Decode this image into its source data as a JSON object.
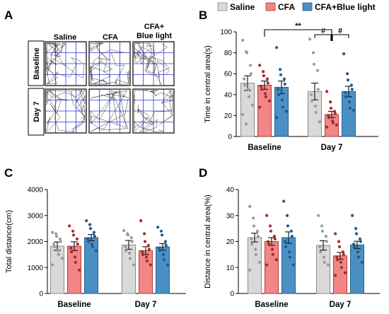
{
  "panel_labels": {
    "a": "A",
    "b": "B",
    "c": "C",
    "d": "D"
  },
  "panel_a": {
    "columns": [
      "Saline",
      "CFA",
      "CFA+\nBlue light"
    ],
    "rows": [
      "Baseline",
      "Day 7"
    ]
  },
  "legend": [
    {
      "name": "Saline",
      "color": "#d9d9d9"
    },
    {
      "name": "CFA",
      "color": "#f28585"
    },
    {
      "name": "CFA+Blue light",
      "color": "#4a90c4"
    }
  ],
  "chart_data": [
    {
      "panel": "B",
      "type": "bar",
      "categories": [
        "Baseline",
        "Day 7"
      ],
      "ylabel": "Time in central area(s)",
      "ylim": [
        0,
        100
      ],
      "yticks": [
        0,
        20,
        40,
        60,
        80,
        100
      ],
      "series": [
        {
          "name": "Saline",
          "values": [
            51,
            43
          ],
          "sem": [
            7,
            8
          ],
          "points": [
            [
              92,
              81,
              80,
              68,
              60,
              55,
              49,
              45,
              38,
              30,
              21,
              12
            ],
            [
              93,
              80,
              69,
              63,
              45,
              40,
              34,
              29,
              23,
              14
            ]
          ]
        },
        {
          "name": "CFA",
          "values": [
            49,
            21
          ],
          "sem": [
            4,
            3
          ],
          "points": [
            [
              68,
              62,
              58,
              55,
              51,
              48,
              45,
              41,
              38,
              34,
              28
            ],
            [
              43,
              33,
              27,
              24,
              22,
              20,
              18,
              15,
              13,
              11,
              9
            ]
          ]
        },
        {
          "name": "CFA+Blue light",
          "values": [
            47,
            43
          ],
          "sem": [
            6,
            5
          ],
          "points": [
            [
              85,
              64,
              59,
              55,
              50,
              45,
              40,
              35,
              28,
              24,
              18
            ],
            [
              79,
              60,
              54,
              49,
              45,
              42,
              38,
              33,
              27,
              25
            ]
          ]
        }
      ],
      "significance": [
        {
          "label": "**"
        },
        {
          "label": "#"
        },
        {
          "label": "#"
        }
      ]
    },
    {
      "panel": "C",
      "type": "bar",
      "categories": [
        "Baseline",
        "Day 7"
      ],
      "ylabel": "Total distance(cm)",
      "ylim": [
        0,
        4000
      ],
      "yticks": [
        0,
        1000,
        2000,
        3000,
        4000
      ],
      "series": [
        {
          "name": "Saline",
          "values": [
            1820,
            1870
          ],
          "sem": [
            160,
            170
          ],
          "points": [
            [
              2350,
              2300,
              2200,
              2100,
              2000,
              1900,
              1800,
              1650,
              1500,
              1350,
              1100
            ],
            [
              2420,
              2300,
              2250,
              2150,
              2000,
              1800,
              1650,
              1550,
              1350,
              1100
            ]
          ]
        },
        {
          "name": "CFA",
          "values": [
            1820,
            1650
          ],
          "sem": [
            170,
            150
          ],
          "points": [
            [
              2600,
              2400,
              2250,
              2100,
              1900,
              1750,
              1600,
              1400,
              1200,
              900
            ],
            [
              2800,
              2300,
              2000,
              1850,
              1700,
              1600,
              1500,
              1400,
              1250,
              1100
            ]
          ]
        },
        {
          "name": "CFA+Blue light",
          "values": [
            2150,
            1790
          ],
          "sem": [
            120,
            130
          ],
          "points": [
            [
              2800,
              2650,
              2500,
              2350,
              2200,
              2100,
              2000,
              1900,
              1800,
              1650
            ],
            [
              2550,
              2400,
              2250,
              2000,
              1850,
              1750,
              1650,
              1500,
              1300,
              1100
            ]
          ]
        }
      ]
    },
    {
      "panel": "D",
      "type": "bar",
      "categories": [
        "Baseline",
        "Day 7"
      ],
      "ylabel": "Distance in central area(%)",
      "ylim": [
        0,
        40
      ],
      "yticks": [
        0,
        10,
        20,
        30,
        40
      ],
      "series": [
        {
          "name": "Saline",
          "values": [
            21.5,
            18.5
          ],
          "sem": [
            1.7,
            1.8
          ],
          "points": [
            [
              33.5,
              29,
              26,
              24,
              22,
              21,
              19,
              17,
              15,
              12,
              9
            ],
            [
              30,
              26,
              24,
              22,
              20,
              18,
              16,
              14,
              12,
              11
            ]
          ]
        },
        {
          "name": "CFA",
          "values": [
            20,
            14.5
          ],
          "sem": [
            1.5,
            1.3
          ],
          "points": [
            [
              30,
              26,
              24,
              22,
              21,
              20,
              19,
              17,
              15,
              13,
              11
            ],
            [
              23,
              20,
              18,
              16,
              15,
              14,
              13,
              12,
              10,
              8,
              7
            ]
          ]
        },
        {
          "name": "CFA+Blue light",
          "values": [
            21.5,
            18.7
          ],
          "sem": [
            2.2,
            1.4
          ],
          "points": [
            [
              35.5,
              30,
              26,
              24,
              22,
              20,
              18,
              16,
              14,
              11
            ],
            [
              30,
              25,
              23,
              21,
              20,
              19,
              18,
              16,
              14,
              12
            ]
          ]
        }
      ]
    }
  ]
}
